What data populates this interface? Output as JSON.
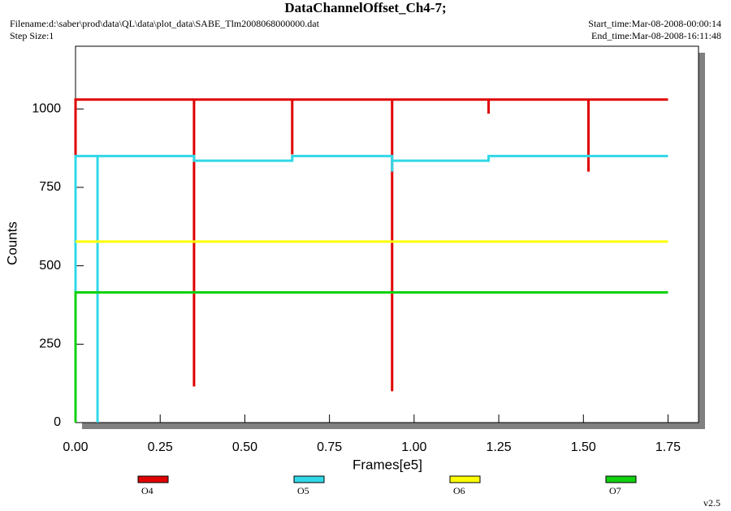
{
  "chart_data": {
    "type": "line",
    "title": "DataChannelOffset_Ch4-7;",
    "filename": "Filename:d:\\saber\\prod\\data\\QL\\data\\plot_data\\SABE_Tlm2008068000000.dat",
    "step_size": "Step Size:1",
    "start_time": "Start_time:Mar-08-2008-00:00:14",
    "end_time": "End_time:Mar-08-2008-16:11:48",
    "version": "v2.5",
    "x_label": "Frames[e5]",
    "y_label": "Counts",
    "xlim": [
      0,
      1.84
    ],
    "ylim": [
      0,
      1200
    ],
    "xticks": [
      {
        "value": 0,
        "label": "0.00"
      },
      {
        "value": 0.25,
        "label": "0.25"
      },
      {
        "value": 0.5,
        "label": "0.50"
      },
      {
        "value": 0.75,
        "label": "0.75"
      },
      {
        "value": 1,
        "label": "1.00"
      },
      {
        "value": 1.25,
        "label": "1.25"
      },
      {
        "value": 1.5,
        "label": "1.50"
      },
      {
        "value": 1.75,
        "label": "1.75"
      }
    ],
    "yticks": [
      0,
      250,
      500,
      750,
      1000
    ],
    "grid": false,
    "series": [
      {
        "name": "O4",
        "color": "#e00000",
        "x": [
          0,
          0,
          0.35,
          0.35,
          0.35,
          0.64,
          0.64,
          0.64,
          0.935,
          0.935,
          0.935,
          1.22,
          1.22,
          1.22,
          1.515,
          1.515,
          1.515,
          1.75
        ],
        "values": [
          850,
          1030,
          1030,
          115,
          1030,
          1030,
          855,
          1030,
          1030,
          100,
          1030,
          1030,
          985,
          1030,
          1030,
          800,
          1030,
          1030
        ]
      },
      {
        "name": "O5",
        "color": "#30d8e8",
        "x": [
          0,
          0,
          0.065,
          0.065,
          0.065,
          0.35,
          0.35,
          0.64,
          0.64,
          0.935,
          0.935,
          0.935,
          1.22,
          1.22,
          1.75
        ],
        "values": [
          0,
          850,
          850,
          0,
          850,
          850,
          835,
          835,
          850,
          850,
          800,
          835,
          835,
          850,
          850
        ]
      },
      {
        "name": "O6",
        "color": "#ffff00",
        "x": [
          0,
          1.75
        ],
        "values": [
          577,
          577
        ]
      },
      {
        "name": "O7",
        "color": "#10d010",
        "x": [
          0,
          0,
          1.75
        ],
        "values": [
          0,
          415,
          415
        ]
      }
    ]
  }
}
